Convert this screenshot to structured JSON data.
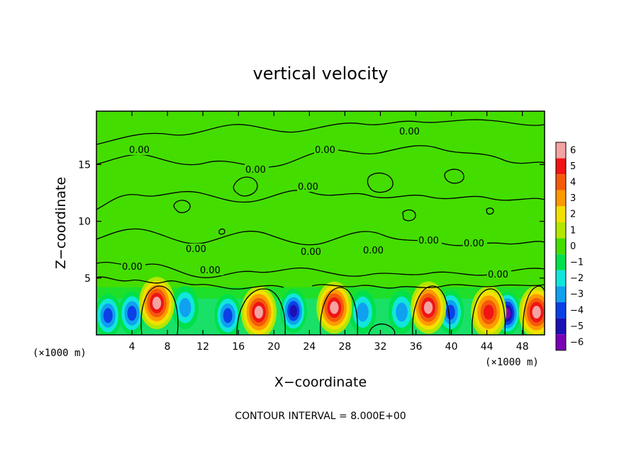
{
  "chart_data": {
    "type": "heatmap",
    "title": "vertical velocity",
    "xlabel": "X−coordinate",
    "ylabel": "Z−coordinate",
    "x_unit_left": "(×1000 m)",
    "x_unit_right": "(×1000 m)",
    "xlim": [
      0,
      50.5
    ],
    "ylim": [
      0,
      19.7
    ],
    "xticks": [
      4,
      8,
      12,
      16,
      20,
      24,
      28,
      32,
      36,
      40,
      44,
      48
    ],
    "yticks": [
      5,
      10,
      15
    ],
    "contour_label": "0.00",
    "contour_label_count": 13,
    "footer": "CONTOUR INTERVAL = 8.000E+00",
    "colorbar": {
      "ticks": [
        6,
        5,
        4,
        3,
        2,
        1,
        0,
        -1,
        -2,
        -3,
        -4,
        -5,
        -6
      ],
      "tick_labels": [
        "6",
        "5",
        "4",
        "3",
        "2",
        "1",
        "0",
        "−1",
        "−2",
        "−3",
        "−4",
        "−5",
        "−6"
      ],
      "colors": [
        "#f4a3a3",
        "#f01414",
        "#f45a0a",
        "#ff9900",
        "#f2e000",
        "#b4e600",
        "#44dd00",
        "#00e04a",
        "#10e6dc",
        "#10a0f0",
        "#0a40e6",
        "#1c10b4",
        "#7a00b4"
      ]
    },
    "background_level": 0,
    "updrafts": [
      {
        "x": 6.8,
        "z": 2.8,
        "w": 6
      },
      {
        "x": 18.3,
        "z": 2.0,
        "w": 6
      },
      {
        "x": 26.8,
        "z": 2.4,
        "w": 6
      },
      {
        "x": 37.4,
        "z": 2.4,
        "w": 6
      },
      {
        "x": 44.2,
        "z": 2.0,
        "w": 5
      },
      {
        "x": 49.6,
        "z": 2.0,
        "w": 6
      }
    ],
    "downdrafts": [
      {
        "x": 1.3,
        "z": 1.7,
        "w": -4
      },
      {
        "x": 4.0,
        "z": 1.9,
        "w": -4
      },
      {
        "x": 10.0,
        "z": 2.4,
        "w": -3
      },
      {
        "x": 14.8,
        "z": 1.7,
        "w": -4
      },
      {
        "x": 22.2,
        "z": 2.1,
        "w": -5
      },
      {
        "x": 30.0,
        "z": 2.0,
        "w": -3
      },
      {
        "x": 34.4,
        "z": 2.0,
        "w": -3
      },
      {
        "x": 39.9,
        "z": 2.0,
        "w": -4
      },
      {
        "x": 46.3,
        "z": 1.9,
        "w": -6
      }
    ]
  }
}
